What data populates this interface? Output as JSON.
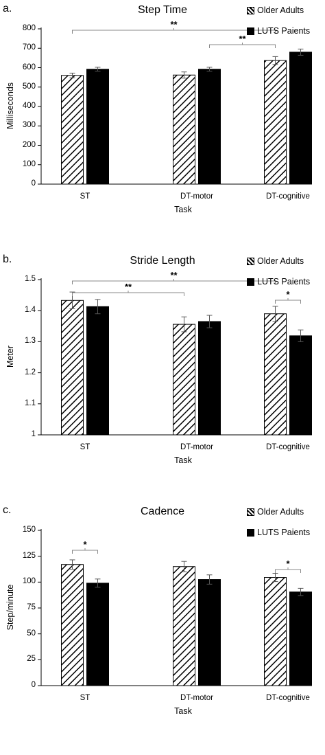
{
  "legend": {
    "older_adults": "Older Adults",
    "luts_patients": "LUTS Paients"
  },
  "colors": {
    "older_adults": "#ffffff",
    "luts_patients": "#000000",
    "hatch": "#000000"
  },
  "chart_data": [
    {
      "panel": "a.",
      "type": "bar",
      "title": "Step Time",
      "xlabel": "Task",
      "ylabel": "Milliseconds",
      "categories": [
        "ST",
        "DT-motor",
        "DT-cognitive"
      ],
      "ylim": [
        0,
        800
      ],
      "yticks": [
        "0",
        "100",
        "200",
        "300",
        "400",
        "500",
        "600",
        "700",
        "800"
      ],
      "series": [
        {
          "name": "Older Adults",
          "values": [
            560,
            562,
            637
          ],
          "errors": [
            12,
            16,
            20
          ]
        },
        {
          "name": "LUTS Paients",
          "values": [
            592,
            592,
            680
          ],
          "errors": [
            10,
            10,
            16
          ]
        }
      ],
      "significance": [
        {
          "from": [
            0,
            0
          ],
          "to": [
            2,
            0
          ],
          "label": "**"
        },
        {
          "from": [
            1,
            1
          ],
          "to": [
            2,
            0
          ],
          "label": "**"
        }
      ]
    },
    {
      "panel": "b.",
      "type": "bar",
      "title": "Stride Length",
      "xlabel": "Task",
      "ylabel": "Meter",
      "categories": [
        "ST",
        "DT-motor",
        "DT-cognitive"
      ],
      "ylim": [
        1,
        1.5
      ],
      "yticks": [
        "1",
        "1.1",
        "1.2",
        "1.3",
        "1.4",
        "1.5"
      ],
      "series": [
        {
          "name": "Older Adults",
          "values": [
            1.433,
            1.356,
            1.39
          ],
          "errors": [
            0.027,
            0.024,
            0.024
          ]
        },
        {
          "name": "LUTS Paients",
          "values": [
            1.413,
            1.365,
            1.319
          ],
          "errors": [
            0.023,
            0.02,
            0.019
          ]
        }
      ],
      "significance": [
        {
          "from": [
            0,
            0
          ],
          "to": [
            2,
            0
          ],
          "label": "**"
        },
        {
          "from": [
            0,
            0
          ],
          "to": [
            1,
            0
          ],
          "label": "**"
        },
        {
          "from": [
            2,
            0
          ],
          "to": [
            2,
            1
          ],
          "label": "*"
        }
      ]
    },
    {
      "panel": "c.",
      "type": "bar",
      "title": "Cadence",
      "xlabel": "Task",
      "ylabel": "Step/minute",
      "categories": [
        "ST",
        "DT-motor",
        "DT-cognitive"
      ],
      "ylim": [
        0,
        150
      ],
      "yticks": [
        "0",
        "25",
        "50",
        "75",
        "100",
        "125",
        "150"
      ],
      "series": [
        {
          "name": "Older Adults",
          "values": [
            117,
            115,
            104.5
          ],
          "errors": [
            4.5,
            5,
            4
          ]
        },
        {
          "name": "LUTS Paients",
          "values": [
            99,
            102.5,
            90.5
          ],
          "errors": [
            4,
            4.5,
            3.5
          ]
        }
      ],
      "significance": [
        {
          "from": [
            0,
            0
          ],
          "to": [
            0,
            1
          ],
          "label": "*"
        },
        {
          "from": [
            2,
            0
          ],
          "to": [
            2,
            1
          ],
          "label": "*"
        }
      ]
    }
  ]
}
